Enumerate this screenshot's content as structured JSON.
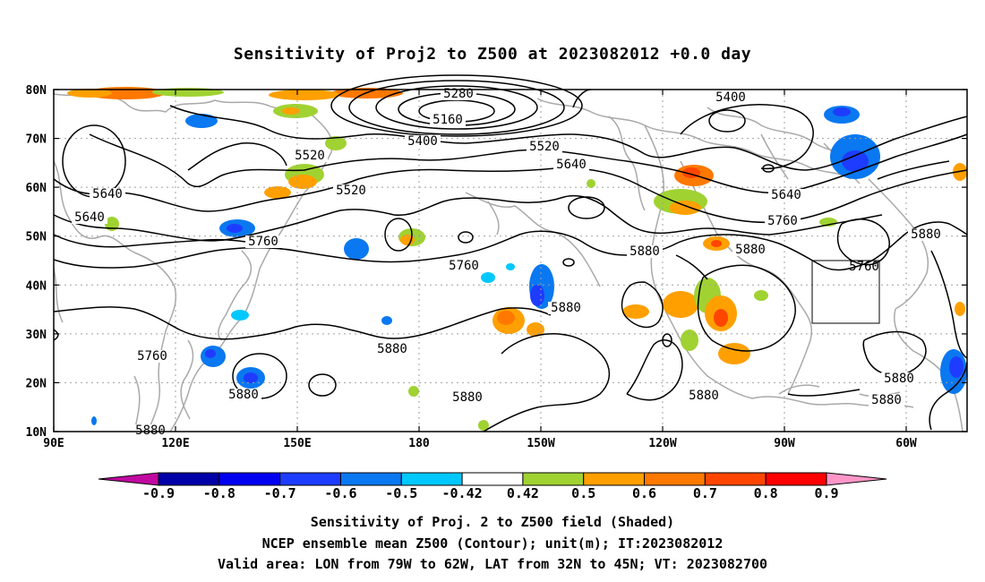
{
  "title": "Sensitivity of Proj2 to Z500 at 2023082012 +0.0 day",
  "map": {
    "lat_labels": [
      "80N",
      "70N",
      "60N",
      "50N",
      "40N",
      "30N",
      "20N",
      "10N"
    ],
    "lon_labels": [
      "90E",
      "120E",
      "150E",
      "180",
      "150W",
      "120W",
      "90W",
      "60W"
    ],
    "contour_labels": [
      "5280",
      "5160",
      "5400",
      "5520",
      "5640",
      "5400",
      "5520",
      "5640",
      "5640",
      "5640",
      "5520",
      "5760",
      "5760",
      "5760",
      "5880",
      "5880",
      "5760",
      "5880",
      "5880",
      "5880",
      "5880",
      "5880",
      "5880",
      "5880",
      "5880",
      "5880"
    ],
    "valid_area_label": "valid-area-box",
    "colors": {
      "land": "#a9a9a9",
      "contour": "#000000",
      "grid": "#a0a0a0"
    }
  },
  "colorbar": {
    "labels": [
      "-0.9",
      "-0.8",
      "-0.7",
      "-0.6",
      "-0.5",
      "-0.42",
      "0.42",
      "0.5",
      "0.6",
      "0.7",
      "0.8",
      "0.9"
    ],
    "colors": [
      "#c00aa0",
      "#0000a8",
      "#0000f0",
      "#1e3cff",
      "#0a78f0",
      "#00c8ff",
      "#ffffff",
      "#a0d232",
      "#ffa000",
      "#ff7800",
      "#ff4600",
      "#ff0000",
      "#ff96c8"
    ]
  },
  "footer": {
    "line1": "Sensitivity of Proj. 2 to Z500 field (Shaded)",
    "line2": "NCEP ensemble mean Z500 (Contour); unit(m); IT:2023082012",
    "line3": "Valid area: LON from 79W to 62W, LAT from 32N to 45N; VT: 2023082700"
  }
}
